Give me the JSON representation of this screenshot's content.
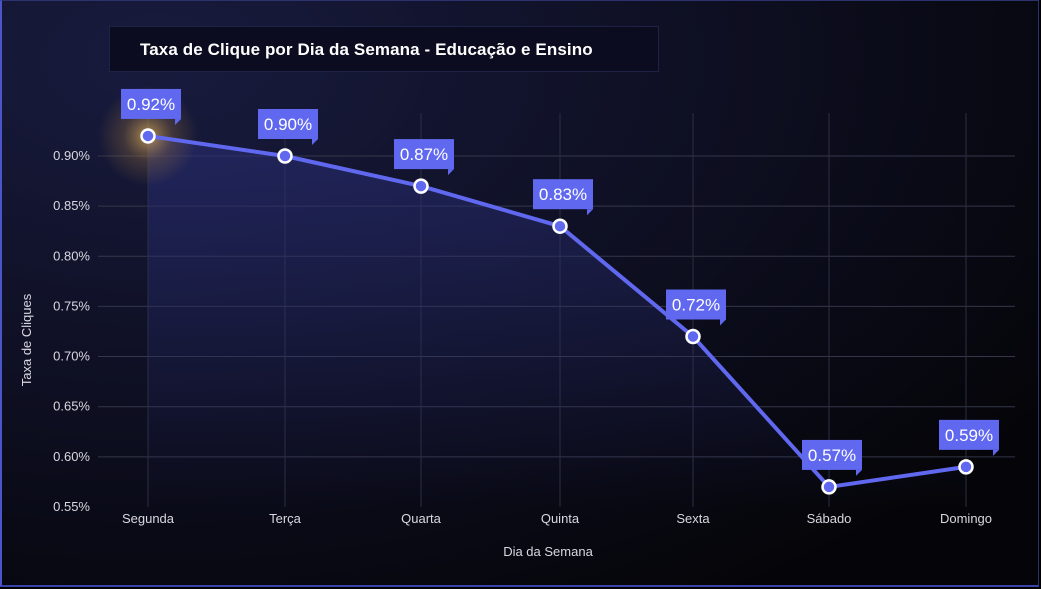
{
  "chart_data": {
    "type": "line",
    "title": "Taxa de Clique por Dia da Semana - Educação e Ensino",
    "xlabel": "Dia da Semana",
    "ylabel": "Taxa de Cliques",
    "categories": [
      "Segunda",
      "Terça",
      "Quarta",
      "Quinta",
      "Sexta",
      "Sábado",
      "Domingo"
    ],
    "values": [
      0.92,
      0.9,
      0.87,
      0.83,
      0.72,
      0.57,
      0.59
    ],
    "data_labels": [
      "0.92%",
      "0.90%",
      "0.87%",
      "0.83%",
      "0.72%",
      "0.57%",
      "0.59%"
    ],
    "yticks": [
      0.55,
      0.6,
      0.65,
      0.7,
      0.75,
      0.8,
      0.85,
      0.9
    ],
    "ytick_labels": [
      "0.55%",
      "0.60%",
      "0.65%",
      "0.70%",
      "0.75%",
      "0.80%",
      "0.85%",
      "0.90%"
    ],
    "ylim": [
      0.55,
      0.955
    ],
    "grid": true,
    "highlight_point": "Segunda",
    "colors": {
      "line": "#6068f0",
      "label_bg": "#6068f0",
      "glow": "#e8b860",
      "background": "#0e0f22"
    }
  }
}
